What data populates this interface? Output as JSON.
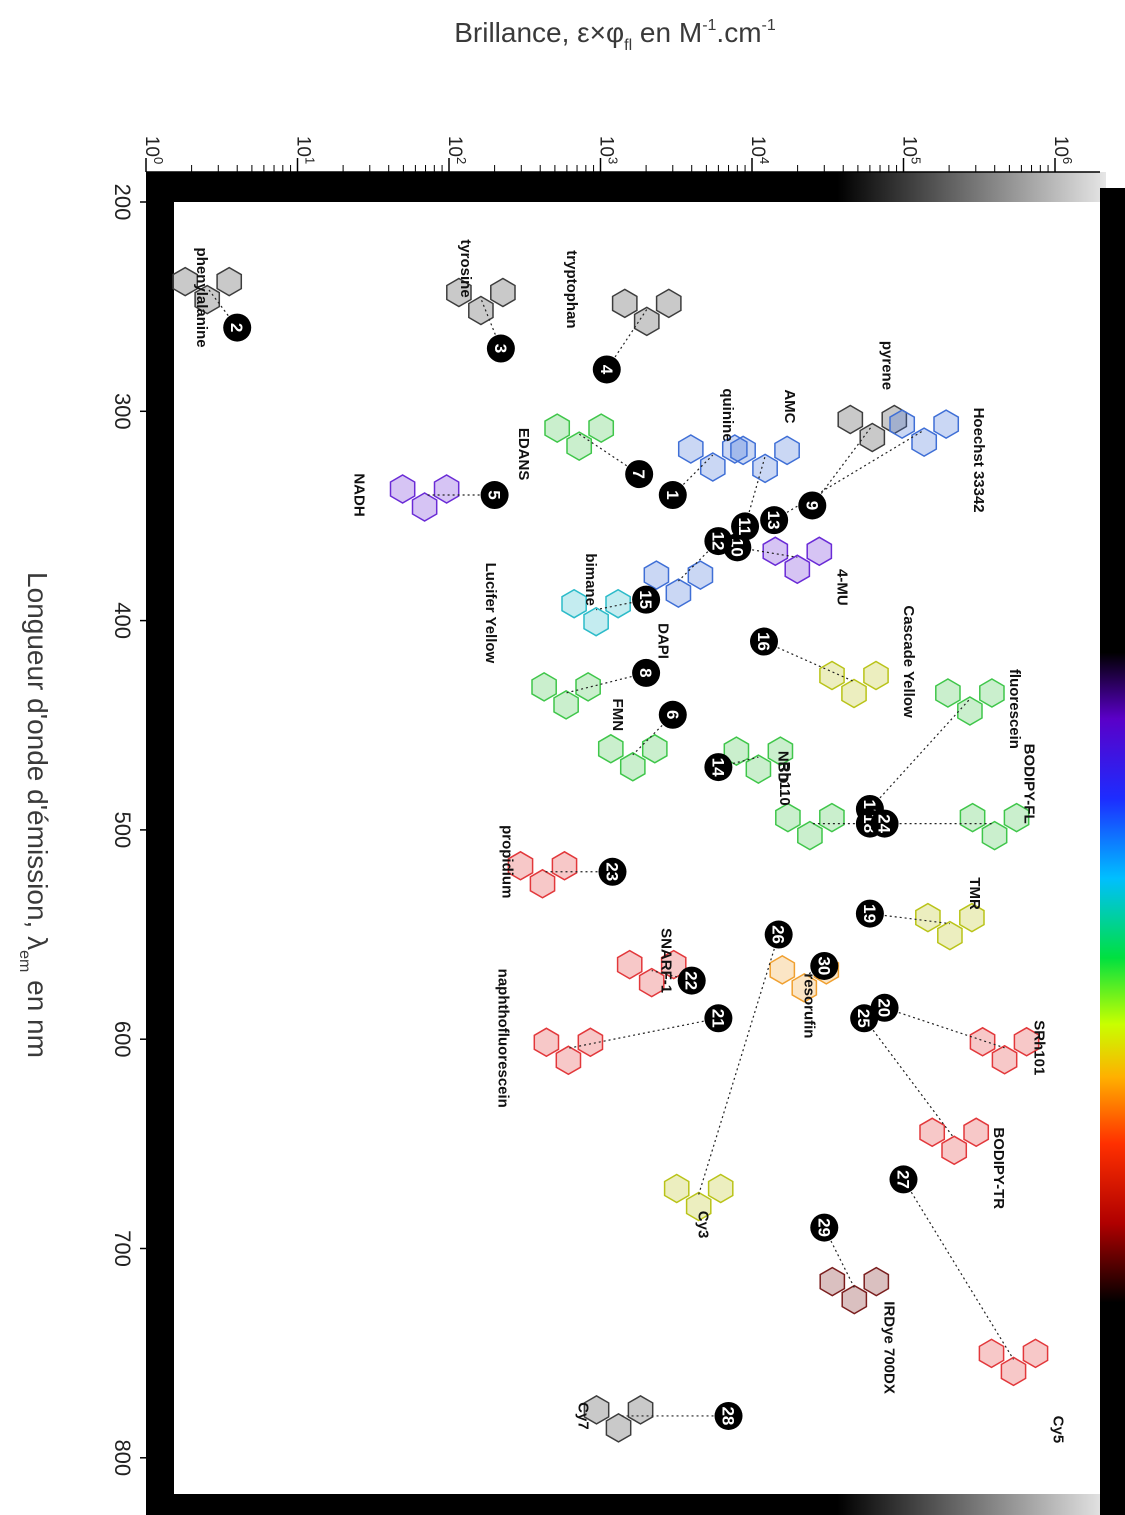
{
  "chart_data": {
    "type": "scatter",
    "title": "",
    "x_axis": {
      "label_prefix": "Brillance, ",
      "label_math": "ε×φ",
      "label_math_sub": "fl",
      "label_suffix": " en M",
      "label_unit_sup1": "-1",
      "label_unit_mid": ".cm",
      "label_unit_sup2": "-1",
      "scale": "log",
      "range": [
        1,
        1000000
      ],
      "tick_base": "10",
      "tick_exponents": [
        "0",
        "1",
        "2",
        "3",
        "4",
        "5",
        "6"
      ]
    },
    "y_axis": {
      "label_prefix": "Longueur d'onde d'émission, λ",
      "label_sub": "em",
      "label_suffix": " en nm",
      "range": [
        200,
        820
      ],
      "ticks": [
        "200",
        "300",
        "400",
        "500",
        "600",
        "700",
        "800"
      ]
    },
    "colors": {
      "frame": "#000000",
      "black_gray": "#3d3d3d",
      "purple": "#6a2bd6",
      "blue": "#3f6fd6",
      "green": "#3fc64a",
      "cyan": "#2cbbc9",
      "yellow": "#b9c318",
      "orange": "#f0a030",
      "red": "#e2383b",
      "darkred": "#7a1e1e"
    },
    "fluorophores": [
      {
        "id": "1",
        "name": "quinine",
        "brightness": 3000,
        "lambda_em": 340,
        "color": "blue"
      },
      {
        "id": "2",
        "name": "phenylalanine",
        "brightness": 4,
        "lambda_em": 260,
        "color": "black_gray"
      },
      {
        "id": "3",
        "name": "tyrosine",
        "brightness": 220,
        "lambda_em": 270,
        "color": "black_gray"
      },
      {
        "id": "4",
        "name": "tryptophan",
        "brightness": 1100,
        "lambda_em": 280,
        "color": "black_gray"
      },
      {
        "id": "5",
        "name": "NADH",
        "brightness": 200,
        "lambda_em": 340,
        "color": "purple"
      },
      {
        "id": "6",
        "name": "FMN",
        "brightness": 3000,
        "lambda_em": 445,
        "color": "green"
      },
      {
        "id": "7",
        "name": "EDANS",
        "brightness": 1800,
        "lambda_em": 330,
        "color": "green"
      },
      {
        "id": "8",
        "name": "Lucifer Yellow",
        "brightness": 2000,
        "lambda_em": 425,
        "color": "green"
      },
      {
        "id": "9",
        "name": "pyrene",
        "brightness": 25000,
        "lambda_em": 345,
        "color": "black_gray"
      },
      {
        "id": "10",
        "name": "4-MU",
        "brightness": 8000,
        "lambda_em": 365,
        "color": "purple"
      },
      {
        "id": "11",
        "name": "AMC",
        "brightness": 9000,
        "lambda_em": 355,
        "color": "blue"
      },
      {
        "id": "12",
        "name": "DAPI",
        "brightness": 6000,
        "lambda_em": 362,
        "color": "blue"
      },
      {
        "id": "13",
        "name": "Hoechst 33342",
        "brightness": 14000,
        "lambda_em": 352,
        "color": "blue"
      },
      {
        "id": "14",
        "name": "NBD",
        "brightness": 6000,
        "lambda_em": 470,
        "color": "green"
      },
      {
        "id": "15",
        "name": "bimane",
        "brightness": 2000,
        "lambda_em": 390,
        "color": "cyan"
      },
      {
        "id": "16",
        "name": "Cascade Yellow",
        "brightness": 12000,
        "lambda_em": 410,
        "color": "yellow"
      },
      {
        "id": "17",
        "name": "fluorescein",
        "brightness": 60000,
        "lambda_em": 490,
        "color": "green"
      },
      {
        "id": "18",
        "name": "Rh110",
        "brightness": 60000,
        "lambda_em": 497,
        "color": "green"
      },
      {
        "id": "19",
        "name": "TMR",
        "brightness": 60000,
        "lambda_em": 540,
        "color": "yellow"
      },
      {
        "id": "20",
        "name": "SRh101",
        "brightness": 75000,
        "lambda_em": 585,
        "color": "red"
      },
      {
        "id": "21",
        "name": "naphthofluorescein",
        "brightness": 6000,
        "lambda_em": 590,
        "color": "red"
      },
      {
        "id": "22",
        "name": "SNARF-1",
        "brightness": 4000,
        "lambda_em": 572,
        "color": "red"
      },
      {
        "id": "23",
        "name": "propidium",
        "brightness": 1200,
        "lambda_em": 520,
        "color": "red"
      },
      {
        "id": "24",
        "name": "BODIPY-FL",
        "brightness": 75000,
        "lambda_em": 497,
        "color": "green"
      },
      {
        "id": "25",
        "name": "BODIPY-TR",
        "brightness": 55000,
        "lambda_em": 590,
        "color": "red"
      },
      {
        "id": "26",
        "name": "Cy3",
        "brightness": 15000,
        "lambda_em": 550,
        "color": "yellow"
      },
      {
        "id": "27",
        "name": "Cy5",
        "brightness": 100000,
        "lambda_em": 667,
        "color": "red"
      },
      {
        "id": "28",
        "name": "Cy7",
        "brightness": 7000,
        "lambda_em": 780,
        "color": "black_gray"
      },
      {
        "id": "29",
        "name": "IRDye 700DX",
        "brightness": 30000,
        "lambda_em": 690,
        "color": "darkred"
      },
      {
        "id": "30",
        "name": "resorufin",
        "brightness": 30000,
        "lambda_em": 565,
        "color": "orange"
      }
    ]
  }
}
